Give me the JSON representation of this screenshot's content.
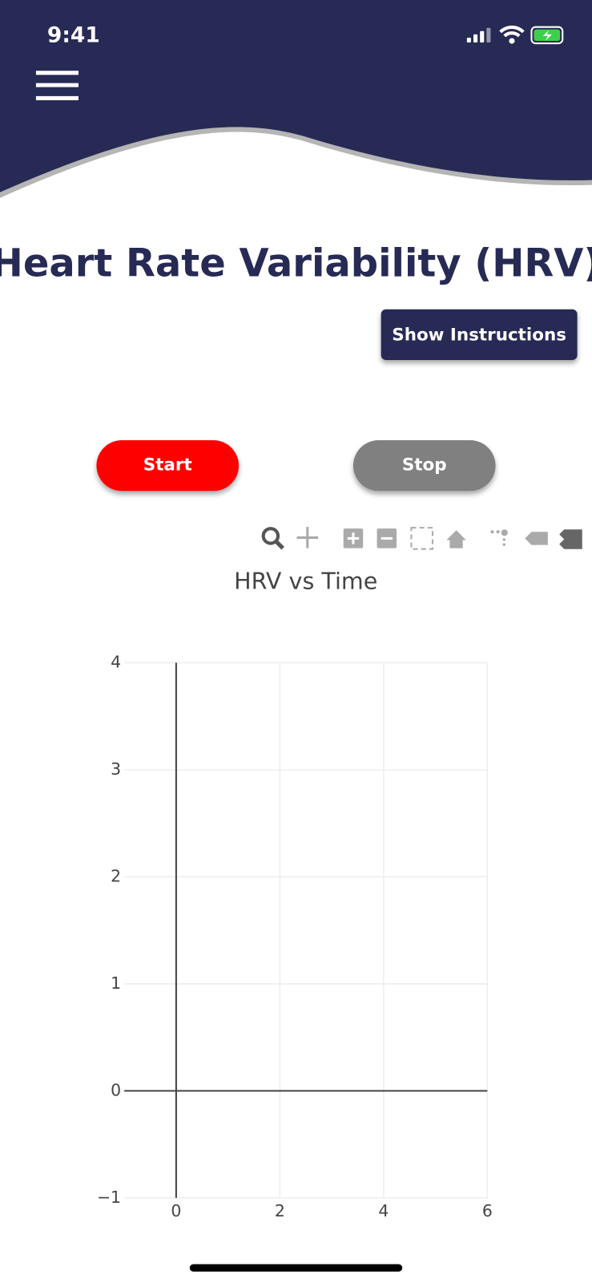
{
  "status_bar": {
    "time": "9:41"
  },
  "header": {
    "title": "Heart Rate Variability (HRV)"
  },
  "buttons": {
    "instructions": "Show Instructions",
    "start": "Start",
    "stop": "Stop"
  },
  "chart_data": {
    "type": "line",
    "title": "HRV vs Time",
    "xlim": [
      -1,
      6
    ],
    "xticks": [
      0,
      2,
      4,
      6
    ],
    "ylim": [
      -1,
      4
    ],
    "yticks": [
      {
        "value": -1,
        "label": "−1"
      },
      0,
      1,
      2,
      3,
      4
    ],
    "grid": true
  }
}
